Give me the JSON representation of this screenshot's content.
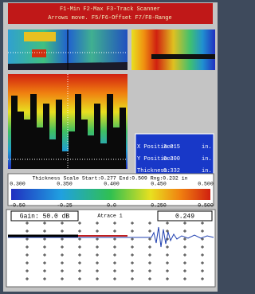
{
  "header": {
    "line1": "F1-Min F2-Max F3-Track Scanner",
    "line2": "Arrows move. F5/F6-Offset F7/F8-Range"
  },
  "position": {
    "rows": [
      {
        "label": "X Position:",
        "value": "3.015",
        "unit": "in."
      },
      {
        "label": "Y Position:",
        "value": "0.300",
        "unit": "in."
      },
      {
        "label": "Thickness:",
        "value": "0.332",
        "unit": "in."
      }
    ]
  },
  "thickness_scale": {
    "title": "Thickness Scale Start:0.277  End:0.509  Rng:0.232  in",
    "ticks": [
      "0.300",
      "0.350",
      "0.400",
      "0.450",
      "0.500"
    ]
  },
  "ascan_axis": {
    "ticks": [
      "-0.50",
      "-0.25",
      "0.0",
      "0.250",
      "0.500"
    ]
  },
  "ascan": {
    "gain": "Gain: 50.0 dB",
    "trace": "Atrace 1",
    "reading": "0.249"
  }
}
